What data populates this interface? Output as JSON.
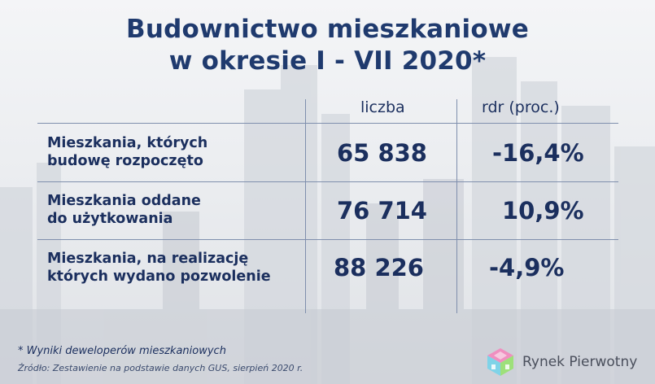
{
  "title_line1": "Budownictwo mieszkaniowe",
  "title_line2": "w okresie  I - VII 2020*",
  "colors": {
    "text": "#1b2f5e",
    "title": "#1f3a6e",
    "rule": "#7f8fad"
  },
  "chart_data": {
    "type": "table",
    "columns": [
      "liczba",
      "rdr (proc.)"
    ],
    "rows": [
      {
        "label_line1": "Mieszkania, których",
        "label_line2": "budowę rozpoczęto",
        "liczba": "65 838",
        "rdr": "-16,4%"
      },
      {
        "label_line1": "Mieszkania oddane",
        "label_line2": "do użytkowania",
        "liczba": "76 714",
        "rdr": "10,9%"
      },
      {
        "label_line1": "Mieszkania, na realizację",
        "label_line2": "których wydano pozwolenie",
        "liczba": "88 226",
        "rdr": "-4,9%"
      }
    ]
  },
  "footnote1": "* Wyniki deweloperów mieszkaniowych",
  "footnote2": "Źródło: Zestawienie na podstawie danych GUS, sierpień 2020 r.",
  "logo": {
    "text": "Rynek Pierwotny",
    "icon": "house-cube-icon"
  }
}
